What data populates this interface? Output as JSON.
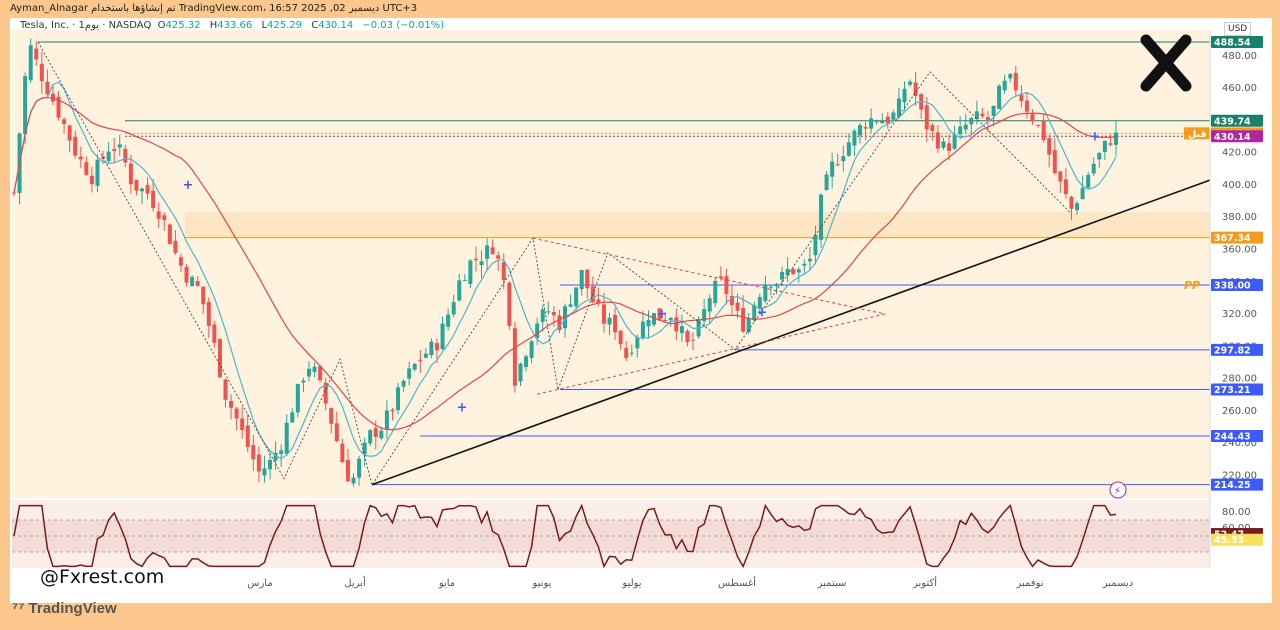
{
  "topbar": {
    "text": "Ayman_Alnagar تم إنشاؤها باستخدام TradingView.com، 16:57 2025 ,02 ديسمبر UTC+3"
  },
  "legend": {
    "symbol": "Tesla, Inc. · 1يوم · NASDAQ",
    "o_label": "O",
    "o": "425.32",
    "h_label": "H",
    "h": "433.66",
    "l_label": "L",
    "l": "425.29",
    "c_label": "C",
    "c": "430.14",
    "chg": "−0.03 (−0.01%)"
  },
  "currency": "USD",
  "watermark": "@Fxrest.com",
  "brand": "TradingView",
  "pp_label": "PP",
  "colors": {
    "up": "#26a69a",
    "down": "#ef5350",
    "ma_fast": "#4ab6d1",
    "ma_slow": "#e0484a",
    "zone": "#fde6c4",
    "level": "#3d5afe",
    "rsi": "#7a1b1b"
  },
  "chart_data": {
    "type": "candlestick",
    "y_axis": {
      "ylim": [
        206,
        496
      ],
      "ticks": [
        220,
        240,
        260,
        280,
        300,
        320,
        340,
        360,
        380,
        400,
        420,
        440,
        460,
        480
      ]
    },
    "x_axis": {
      "months": [
        "مارس",
        "أبريل",
        "مايو",
        "يونيو",
        "يوليو",
        "أغسطس",
        "سبتمبر",
        "أكتوبر",
        "نوفمبر",
        "ديسمبر"
      ]
    },
    "price_labels": [
      {
        "value": 488.54,
        "text": "488.54",
        "color": "#17826a"
      },
      {
        "value": 439.74,
        "text": "439.74",
        "color": "#17826a"
      },
      {
        "value": 431.96,
        "text": "431.96",
        "color": "#f59b1c",
        "tag": "قبل"
      },
      {
        "value": 430.14,
        "text": "430.14",
        "color": "#b0279d"
      },
      {
        "value": 367.34,
        "text": "367.34",
        "color": "#f59b1c"
      },
      {
        "value": 338.0,
        "text": "338.00",
        "color": "#3d5afe"
      },
      {
        "value": 297.82,
        "text": "297.82",
        "color": "#3d5afe"
      },
      {
        "value": 273.21,
        "text": "273.21",
        "color": "#3d5afe"
      },
      {
        "value": 244.43,
        "text": "244.43",
        "color": "#3d5afe"
      },
      {
        "value": 214.25,
        "text": "214.25",
        "color": "#3d5afe"
      }
    ],
    "demand_zone": {
      "from": 367.34,
      "to": 383
    },
    "rsi": {
      "ylim": [
        10,
        95
      ],
      "ticks": [
        80,
        60
      ],
      "labels": [
        {
          "value": 52.47,
          "text": "52.47",
          "color": "#7a1b1b"
        },
        {
          "value": 45.33,
          "text": "45.33",
          "color": "#f6e05e"
        }
      ]
    },
    "close_path": [
      [
        0,
        395
      ],
      [
        4,
        445
      ],
      [
        8,
        488
      ],
      [
        14,
        470
      ],
      [
        20,
        455
      ],
      [
        26,
        440
      ],
      [
        34,
        418
      ],
      [
        42,
        405
      ],
      [
        52,
        425
      ],
      [
        58,
        420
      ],
      [
        64,
        400
      ],
      [
        72,
        395
      ],
      [
        80,
        380
      ],
      [
        86,
        360
      ],
      [
        92,
        345
      ],
      [
        100,
        335
      ],
      [
        108,
        300
      ],
      [
        114,
        270
      ],
      [
        120,
        255
      ],
      [
        126,
        238
      ],
      [
        132,
        222
      ],
      [
        138,
        228
      ],
      [
        144,
        240
      ],
      [
        150,
        262
      ],
      [
        156,
        282
      ],
      [
        160,
        290
      ],
      [
        166,
        272
      ],
      [
        172,
        250
      ],
      [
        178,
        225
      ],
      [
        182,
        215
      ],
      [
        186,
        228
      ],
      [
        192,
        245
      ],
      [
        198,
        250
      ],
      [
        204,
        262
      ],
      [
        210,
        278
      ],
      [
        216,
        288
      ],
      [
        222,
        296
      ],
      [
        228,
        302
      ],
      [
        234,
        320
      ],
      [
        240,
        340
      ],
      [
        246,
        352
      ],
      [
        252,
        356
      ],
      [
        258,
        362
      ],
      [
        262,
        350
      ],
      [
        266,
        330
      ],
      [
        270,
        280
      ],
      [
        276,
        298
      ],
      [
        282,
        316
      ],
      [
        288,
        322
      ],
      [
        294,
        314
      ],
      [
        300,
        330
      ],
      [
        306,
        345
      ],
      [
        312,
        328
      ],
      [
        318,
        316
      ],
      [
        324,
        312
      ],
      [
        330,
        294
      ],
      [
        336,
        308
      ],
      [
        342,
        320
      ],
      [
        348,
        318
      ],
      [
        354,
        320
      ],
      [
        360,
        308
      ],
      [
        364,
        298
      ],
      [
        370,
        315
      ],
      [
        376,
        334
      ],
      [
        382,
        340
      ],
      [
        388,
        322
      ],
      [
        394,
        312
      ],
      [
        400,
        330
      ],
      [
        406,
        342
      ],
      [
        412,
        340
      ],
      [
        418,
        348
      ],
      [
        424,
        346
      ],
      [
        430,
        355
      ],
      [
        434,
        385
      ],
      [
        440,
        410
      ],
      [
        446,
        420
      ],
      [
        452,
        430
      ],
      [
        458,
        438
      ],
      [
        464,
        442
      ],
      [
        470,
        440
      ],
      [
        476,
        445
      ],
      [
        482,
        468
      ],
      [
        486,
        455
      ],
      [
        490,
        440
      ],
      [
        496,
        430
      ],
      [
        502,
        422
      ],
      [
        508,
        430
      ],
      [
        514,
        438
      ],
      [
        520,
        442
      ],
      [
        526,
        440
      ],
      [
        532,
        460
      ],
      [
        538,
        465
      ],
      [
        544,
        452
      ],
      [
        550,
        440
      ],
      [
        556,
        428
      ],
      [
        560,
        410
      ],
      [
        566,
        395
      ],
      [
        570,
        385
      ],
      [
        576,
        398
      ],
      [
        580,
        410
      ],
      [
        586,
        420
      ],
      [
        590,
        428
      ],
      [
        594,
        430
      ]
    ]
  }
}
